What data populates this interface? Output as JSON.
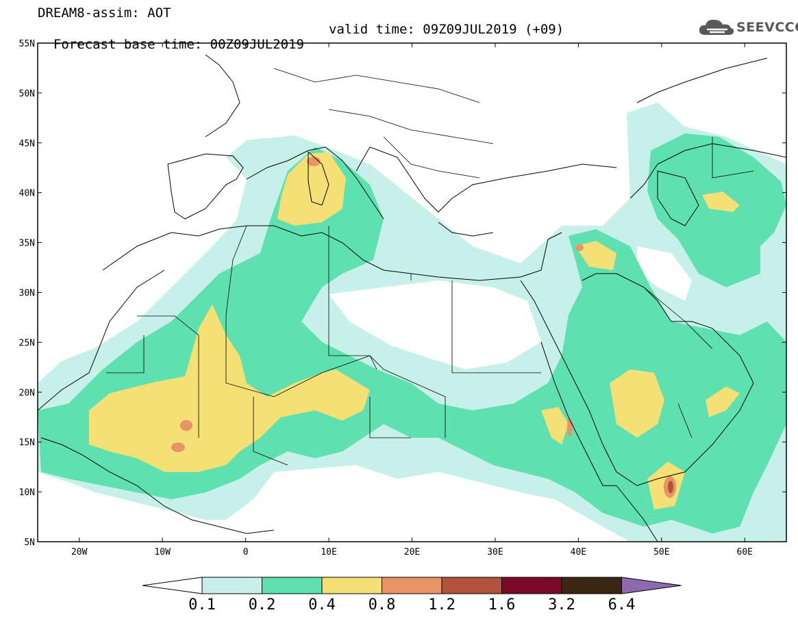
{
  "header": {
    "line1": "DREAM8-assim: AOT",
    "line2_base": "Forecast base time: 00Z09JUL2019",
    "line2_valid": "valid time: 09Z09JUL2019 (+09)"
  },
  "logo": {
    "text": "SEEVCCC",
    "icon": "cloud-icon"
  },
  "map": {
    "lon_range": [
      -25,
      65
    ],
    "lat_range": [
      5,
      55
    ],
    "lat_labels": [
      "55N",
      "50N",
      "45N",
      "40N",
      "35N",
      "30N",
      "25N",
      "20N",
      "15N",
      "10N",
      "5N"
    ],
    "lon_labels": [
      "20W",
      "10W",
      "0",
      "10E",
      "20E",
      "30E",
      "40E",
      "50E",
      "60E"
    ]
  },
  "colorbar": {
    "labels": [
      "0.1",
      "0.2",
      "0.4",
      "0.8",
      "1.2",
      "1.6",
      "3.2",
      "6.4"
    ],
    "colors": [
      "#ffffff",
      "#c6f0e9",
      "#5ee0b0",
      "#f4e074",
      "#e89466",
      "#b0523c",
      "#7a0826",
      "#3a2612",
      "#8d6ab0"
    ]
  }
}
